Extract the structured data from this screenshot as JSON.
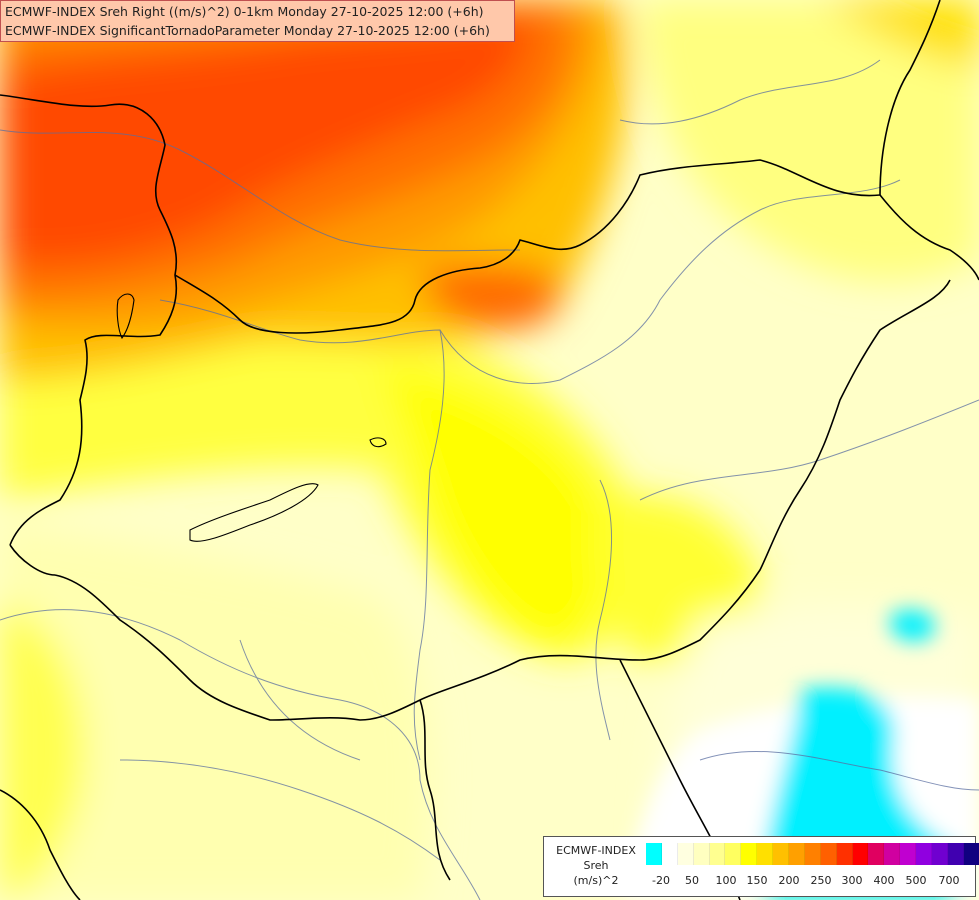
{
  "header": {
    "line1": "ECMWF-INDEX Sreh Right ((m/s)^2) 0-1km Monday 27-10-2025 12:00 (+6h)",
    "line2": "ECMWF-INDEX SignificantTornadoParameter Monday 27-10-2025 12:00 (+6h)"
  },
  "legend": {
    "source": "ECMWF-INDEX",
    "variable": "Sreh",
    "unit": "(m/s)^2",
    "ticks": [
      "-20",
      "50",
      "100",
      "150",
      "200",
      "250",
      "300",
      "400",
      "500",
      "700"
    ],
    "colors": [
      "#00ffff",
      "#ffffff",
      "#ffffe0",
      "#ffffc0",
      "#ffff90",
      "#ffff60",
      "#ffff00",
      "#ffe000",
      "#ffc000",
      "#ffa000",
      "#ff8000",
      "#ff6000",
      "#ff3000",
      "#ff0000",
      "#e00060",
      "#d000a0",
      "#c000d0",
      "#9000e0",
      "#7000d0",
      "#4000b0",
      "#100080"
    ]
  }
}
